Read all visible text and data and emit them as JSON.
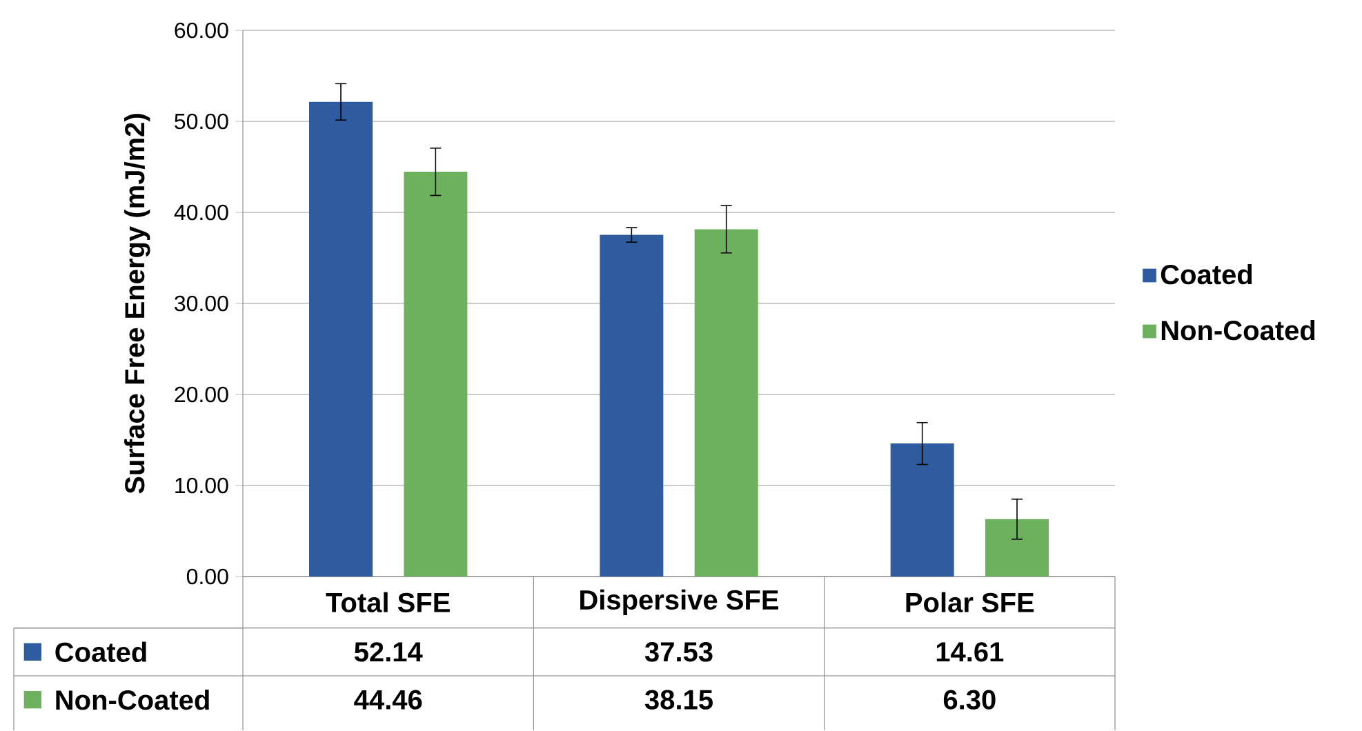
{
  "chart_data": {
    "type": "bar",
    "ylabel": "Surface Free Energy (mJ/m2)",
    "categories": [
      "Total SFE",
      "Dispersive SFE",
      "Polar SFE"
    ],
    "series": [
      {
        "name": "Coated",
        "color": "#2e5c9e",
        "values": [
          52.14,
          37.53,
          14.61
        ],
        "value_labels": [
          "52.14",
          "37.53",
          "14.61"
        ],
        "errors": [
          2.0,
          0.8,
          2.3
        ]
      },
      {
        "name": "Non-Coated",
        "color": "#6db05e",
        "values": [
          44.46,
          38.15,
          6.3
        ],
        "value_labels": [
          "44.46",
          "38.15",
          "6.30"
        ],
        "errors": [
          2.6,
          2.6,
          2.2
        ]
      }
    ],
    "ylim": [
      0,
      60
    ],
    "yticks": [
      {
        "value": 0,
        "label": "0.00"
      },
      {
        "value": 10,
        "label": "10.00"
      },
      {
        "value": 20,
        "label": "20.00"
      },
      {
        "value": 30,
        "label": "30.00"
      },
      {
        "value": 40,
        "label": "40.00"
      },
      {
        "value": 50,
        "label": "50.00"
      },
      {
        "value": 60,
        "label": "60.00"
      }
    ],
    "grid": "y",
    "legend": "right"
  }
}
